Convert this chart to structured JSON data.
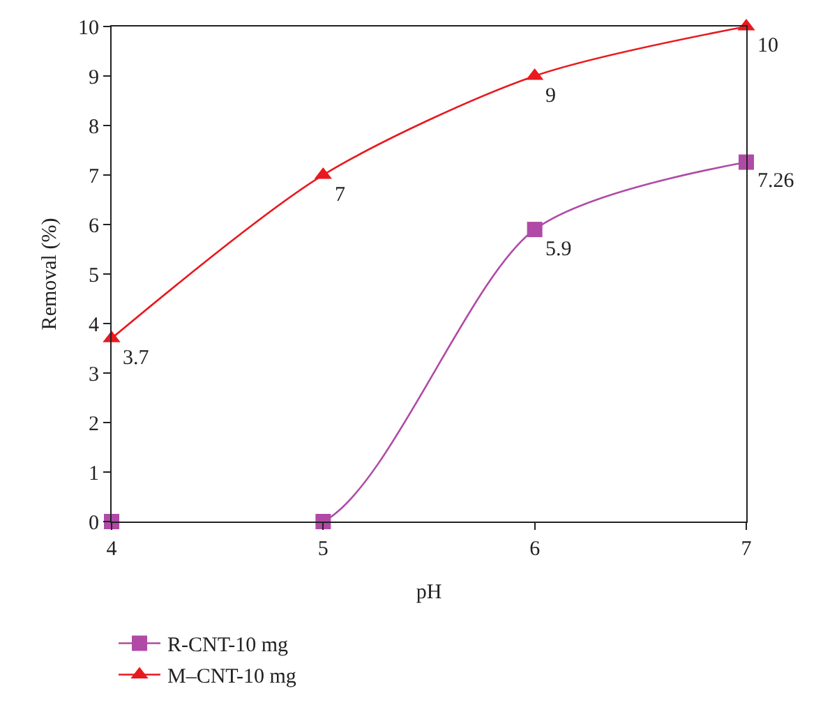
{
  "chart_data": {
    "type": "line",
    "xlabel": "pH",
    "ylabel": "Removal (%)",
    "x": [
      4,
      5,
      6,
      7
    ],
    "series": [
      {
        "name": "R-CNT-10 mg",
        "color": "#b04aa6",
        "marker": "square",
        "values": [
          0,
          0,
          5.9,
          7.26
        ],
        "value_labels": [
          null,
          null,
          "5.9",
          "7.26"
        ]
      },
      {
        "name": "M–CNT-10 mg",
        "color": "#e8191f",
        "marker": "triangle",
        "values": [
          3.7,
          7,
          9,
          10
        ],
        "value_labels": [
          "3.7",
          "7",
          "9",
          "10"
        ]
      }
    ],
    "xlim": [
      4,
      7
    ],
    "xticks": [
      4,
      5,
      6,
      7
    ],
    "ylim": [
      0,
      10
    ],
    "yticks": [
      0,
      1,
      2,
      3,
      4,
      5,
      6,
      7,
      8,
      9,
      10
    ],
    "grid": false,
    "legend": "bottom left",
    "line_style": "solid"
  }
}
